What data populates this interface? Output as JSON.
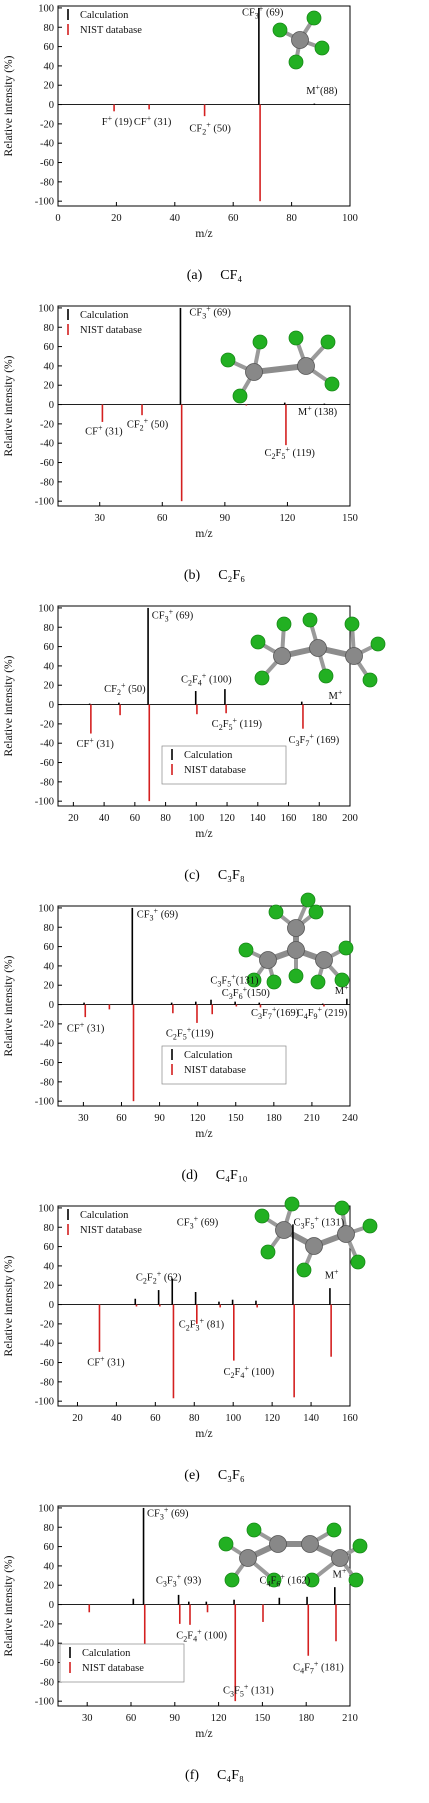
{
  "chart_data": [
    {
      "type": "bar",
      "title": "",
      "caption_letter": "(a)",
      "caption_formula": "CF₄",
      "xlabel": "m/z",
      "ylabel": "Relative intensity (%)",
      "xlim": [
        0,
        100
      ],
      "ylim": [
        -105,
        102
      ],
      "xticks": [
        0,
        20,
        40,
        60,
        80,
        100
      ],
      "yticks": [
        -100,
        -80,
        -60,
        -40,
        -20,
        0,
        20,
        40,
        60,
        80,
        100
      ],
      "legend": {
        "position": "top-left",
        "entries": [
          {
            "label": "Calculation",
            "color": "#000000"
          },
          {
            "label": "NIST database",
            "color": "#d42020"
          }
        ]
      },
      "series": [
        {
          "name": "Calculation",
          "color": "#000000",
          "points": [
            {
              "x": 69,
              "y": 100
            },
            {
              "x": 88,
              "y": 1
            }
          ]
        },
        {
          "name": "NIST database",
          "color": "#d42020",
          "points": [
            {
              "x": 19,
              "y": -7
            },
            {
              "x": 31,
              "y": -5
            },
            {
              "x": 50,
              "y": -12
            },
            {
              "x": 69,
              "y": -100
            }
          ]
        }
      ],
      "annotations": [
        {
          "text": "CF₃⁺ (69)",
          "x": 63,
          "y": 92
        },
        {
          "text": "M⁺(88)",
          "x": 85,
          "y": 11
        },
        {
          "text": "F⁺ (19)",
          "x": 15,
          "y": -21
        },
        {
          "text": "CF⁺ (31)",
          "x": 26,
          "y": -21
        },
        {
          "text": "CF₂⁺ (50)",
          "x": 45,
          "y": -28
        }
      ],
      "molecule": "CF4"
    },
    {
      "type": "bar",
      "title": "",
      "caption_letter": "(b)",
      "caption_formula": "C₂F₆",
      "xlabel": "m/z",
      "ylabel": "Relative intensity (%)",
      "xlim": [
        10,
        150
      ],
      "ylim": [
        -105,
        102
      ],
      "xticks": [
        30,
        60,
        90,
        120,
        150
      ],
      "yticks": [
        -100,
        -80,
        -60,
        -40,
        -20,
        0,
        20,
        40,
        60,
        80,
        100
      ],
      "legend": {
        "position": "top-left",
        "entries": [
          {
            "label": "Calculation",
            "color": "#000000"
          },
          {
            "label": "NIST database",
            "color": "#d42020"
          }
        ]
      },
      "series": [
        {
          "name": "Calculation",
          "color": "#000000",
          "points": [
            {
              "x": 69,
              "y": 100
            },
            {
              "x": 119,
              "y": 2
            },
            {
              "x": 138,
              "y": 1
            }
          ]
        },
        {
          "name": "NIST database",
          "color": "#d42020",
          "points": [
            {
              "x": 31,
              "y": -18
            },
            {
              "x": 50,
              "y": -11
            },
            {
              "x": 69,
              "y": -100
            },
            {
              "x": 100,
              "y": -1
            },
            {
              "x": 119,
              "y": -42
            }
          ]
        }
      ],
      "annotations": [
        {
          "text": "CF₃⁺ (69)",
          "x": 73,
          "y": 92
        },
        {
          "text": "M⁺ (138)",
          "x": 125,
          "y": -11
        },
        {
          "text": "CF⁺ (31)",
          "x": 23,
          "y": -31
        },
        {
          "text": "CF₂⁺ (50)",
          "x": 43,
          "y": -24
        },
        {
          "text": "C₂F₅⁺ (119)",
          "x": 109,
          "y": -53
        }
      ],
      "molecule": "C2F6"
    },
    {
      "type": "bar",
      "title": "",
      "caption_letter": "(c)",
      "caption_formula": "C₃F₈",
      "xlabel": "m/z",
      "ylabel": "Relative intensity (%)",
      "xlim": [
        10,
        200
      ],
      "ylim": [
        -105,
        102
      ],
      "xticks": [
        20,
        40,
        60,
        80,
        100,
        120,
        140,
        160,
        180,
        200
      ],
      "yticks": [
        -100,
        -80,
        -60,
        -40,
        -20,
        0,
        20,
        40,
        60,
        80,
        100
      ],
      "legend": {
        "position": "bottom-center",
        "entries": [
          {
            "label": "Calculation",
            "color": "#000000"
          },
          {
            "label": "NIST database",
            "color": "#d42020"
          }
        ]
      },
      "series": [
        {
          "name": "Calculation",
          "color": "#000000",
          "points": [
            {
              "x": 31,
              "y": 1
            },
            {
              "x": 50,
              "y": 2
            },
            {
              "x": 69,
              "y": 100
            },
            {
              "x": 100,
              "y": 14
            },
            {
              "x": 119,
              "y": 16
            },
            {
              "x": 169,
              "y": 3
            },
            {
              "x": 188,
              "y": 2
            }
          ]
        },
        {
          "name": "NIST database",
          "color": "#d42020",
          "points": [
            {
              "x": 31,
              "y": -30
            },
            {
              "x": 50,
              "y": -11
            },
            {
              "x": 69,
              "y": -100
            },
            {
              "x": 100,
              "y": -10
            },
            {
              "x": 119,
              "y": -9
            },
            {
              "x": 169,
              "y": -25
            }
          ]
        }
      ],
      "annotations": [
        {
          "text": "CF₃⁺ (69)",
          "x": 71,
          "y": 89
        },
        {
          "text": "CF₂⁺ (50)",
          "x": 40,
          "y": 13
        },
        {
          "text": "C₂F₄⁺ (100)",
          "x": 90,
          "y": 23
        },
        {
          "text": "M⁺",
          "x": 186,
          "y": 6
        },
        {
          "text": "CF⁺ (31)",
          "x": 22,
          "y": -44
        },
        {
          "text": "C₂F₅⁺ (119)",
          "x": 110,
          "y": -23
        },
        {
          "text": "C₃F₇⁺ (169)",
          "x": 160,
          "y": -40
        }
      ],
      "molecule": "C3F8"
    },
    {
      "type": "bar",
      "title": "",
      "caption_letter": "(d)",
      "caption_formula": "C₄F₁₀",
      "xlabel": "m/z",
      "ylabel": "Relative intensity (%)",
      "xlim": [
        10,
        240
      ],
      "ylim": [
        -105,
        102
      ],
      "xticks": [
        30,
        60,
        90,
        120,
        150,
        180,
        210,
        240
      ],
      "yticks": [
        -100,
        -80,
        -60,
        -40,
        -20,
        0,
        20,
        40,
        60,
        80,
        100
      ],
      "legend": {
        "position": "bottom-center",
        "entries": [
          {
            "label": "Calculation",
            "color": "#000000"
          },
          {
            "label": "NIST database",
            "color": "#d42020"
          }
        ]
      },
      "series": [
        {
          "name": "Calculation",
          "color": "#000000",
          "points": [
            {
              "x": 31,
              "y": 2
            },
            {
              "x": 69,
              "y": 100
            },
            {
              "x": 100,
              "y": 2
            },
            {
              "x": 119,
              "y": 3
            },
            {
              "x": 131,
              "y": 5
            },
            {
              "x": 150,
              "y": 3
            },
            {
              "x": 169,
              "y": 2
            },
            {
              "x": 219,
              "y": 1
            },
            {
              "x": 238,
              "y": 6
            }
          ]
        },
        {
          "name": "NIST database",
          "color": "#d42020",
          "points": [
            {
              "x": 31,
              "y": -13
            },
            {
              "x": 50,
              "y": -5
            },
            {
              "x": 69,
              "y": -100
            },
            {
              "x": 100,
              "y": -9
            },
            {
              "x": 119,
              "y": -19
            },
            {
              "x": 131,
              "y": -10
            },
            {
              "x": 150,
              "y": -2
            },
            {
              "x": 169,
              "y": -3
            },
            {
              "x": 219,
              "y": -2
            }
          ]
        }
      ],
      "annotations": [
        {
          "text": "CF₃⁺ (69)",
          "x": 72,
          "y": 90
        },
        {
          "text": "C₃F₅⁺(131)",
          "x": 130,
          "y": 22
        },
        {
          "text": "C₃F₆⁺(150)",
          "x": 139,
          "y": 9
        },
        {
          "text": "M⁺",
          "x": 228,
          "y": 11
        },
        {
          "text": "CF⁺ (31)",
          "x": 17,
          "y": -28
        },
        {
          "text": "C₂F₅⁺(119)",
          "x": 95,
          "y": -33
        },
        {
          "text": "C₃F₇⁺(169)",
          "x": 162,
          "y": -12
        },
        {
          "text": "C₄F₉⁺ (219)",
          "x": 198,
          "y": -12
        }
      ],
      "molecule": "C4F10"
    },
    {
      "type": "bar",
      "title": "",
      "caption_letter": "(e)",
      "caption_formula": "C₃F₆",
      "xlabel": "m/z",
      "ylabel": "Relative intensity (%)",
      "xlim": [
        10,
        160
      ],
      "ylim": [
        -105,
        102
      ],
      "xticks": [
        20,
        40,
        60,
        80,
        100,
        120,
        140,
        160
      ],
      "yticks": [
        -100,
        -80,
        -60,
        -40,
        -20,
        0,
        20,
        40,
        60,
        80,
        100
      ],
      "legend": {
        "position": "top-left",
        "entries": [
          {
            "label": "Calculation",
            "color": "#000000"
          },
          {
            "label": "NIST database",
            "color": "#d42020"
          }
        ]
      },
      "series": [
        {
          "name": "Calculation",
          "color": "#000000",
          "points": [
            {
              "x": 50,
              "y": 6
            },
            {
              "x": 62,
              "y": 15
            },
            {
              "x": 69,
              "y": 27
            },
            {
              "x": 81,
              "y": 13
            },
            {
              "x": 93,
              "y": 3
            },
            {
              "x": 100,
              "y": 5
            },
            {
              "x": 112,
              "y": 4
            },
            {
              "x": 131,
              "y": 83
            },
            {
              "x": 150,
              "y": 17
            }
          ]
        },
        {
          "name": "NIST database",
          "color": "#d42020",
          "points": [
            {
              "x": 31,
              "y": -49
            },
            {
              "x": 50,
              "y": -2
            },
            {
              "x": 62,
              "y": -2
            },
            {
              "x": 69,
              "y": -97
            },
            {
              "x": 81,
              "y": -20
            },
            {
              "x": 93,
              "y": -3
            },
            {
              "x": 100,
              "y": -58
            },
            {
              "x": 112,
              "y": -3
            },
            {
              "x": 131,
              "y": -96
            },
            {
              "x": 150,
              "y": -54
            }
          ]
        }
      ],
      "annotations": [
        {
          "text": "CF₃⁺ (69)",
          "x": 71,
          "y": 82
        },
        {
          "text": "C₃F₅⁺ (131)",
          "x": 131,
          "y": 82
        },
        {
          "text": "C₂F₂⁺ (62)",
          "x": 50,
          "y": 25
        },
        {
          "text": "M⁺",
          "x": 147,
          "y": 27
        },
        {
          "text": "C₂F₃⁺ (81)",
          "x": 72,
          "y": -24
        },
        {
          "text": "CF⁺ (31)",
          "x": 25,
          "y": -63
        },
        {
          "text": "C₂F₄⁺ (100)",
          "x": 95,
          "y": -73
        }
      ],
      "molecule": "C3F6"
    },
    {
      "type": "bar",
      "title": "",
      "caption_letter": "(f)",
      "caption_formula": "C₄F₈",
      "xlabel": "m/z",
      "ylabel": "Relative intensity (%)",
      "xlim": [
        10,
        210
      ],
      "ylim": [
        -105,
        102
      ],
      "xticks": [
        30,
        60,
        90,
        120,
        150,
        180,
        210
      ],
      "yticks": [
        -100,
        -80,
        -60,
        -40,
        -20,
        0,
        20,
        40,
        60,
        80,
        100
      ],
      "legend": {
        "position": "bottom-left",
        "entries": [
          {
            "label": "Calculation",
            "color": "#000000"
          },
          {
            "label": "NIST database",
            "color": "#d42020"
          }
        ]
      },
      "series": [
        {
          "name": "Calculation",
          "color": "#000000",
          "points": [
            {
              "x": 62,
              "y": 6
            },
            {
              "x": 69,
              "y": 100
            },
            {
              "x": 93,
              "y": 10
            },
            {
              "x": 100,
              "y": 3
            },
            {
              "x": 112,
              "y": 3
            },
            {
              "x": 131,
              "y": 5
            },
            {
              "x": 162,
              "y": 7
            },
            {
              "x": 181,
              "y": 8
            },
            {
              "x": 200,
              "y": 18
            }
          ]
        },
        {
          "name": "NIST database",
          "color": "#d42020",
          "points": [
            {
              "x": 31,
              "y": -8
            },
            {
              "x": 69,
              "y": -43
            },
            {
              "x": 93,
              "y": -20
            },
            {
              "x": 100,
              "y": -21
            },
            {
              "x": 112,
              "y": -8
            },
            {
              "x": 131,
              "y": -100
            },
            {
              "x": 150,
              "y": -18
            },
            {
              "x": 181,
              "y": -53
            },
            {
              "x": 200,
              "y": -38
            }
          ]
        }
      ],
      "annotations": [
        {
          "text": "CF₃⁺ (69)",
          "x": 71,
          "y": 91
        },
        {
          "text": "C₃F₃⁺ (93)",
          "x": 77,
          "y": 22
        },
        {
          "text": "C₄F₆⁺ (162)",
          "x": 148,
          "y": 22
        },
        {
          "text": "M⁺",
          "x": 198,
          "y": 28
        },
        {
          "text": "C₂F₄⁺ (100)",
          "x": 91,
          "y": -35
        },
        {
          "text": "C₄F₇⁺ (181)",
          "x": 171,
          "y": -68
        },
        {
          "text": "C₃F₅⁺ (131)",
          "x": 123,
          "y": -92
        }
      ],
      "molecule": "C4F8"
    }
  ]
}
